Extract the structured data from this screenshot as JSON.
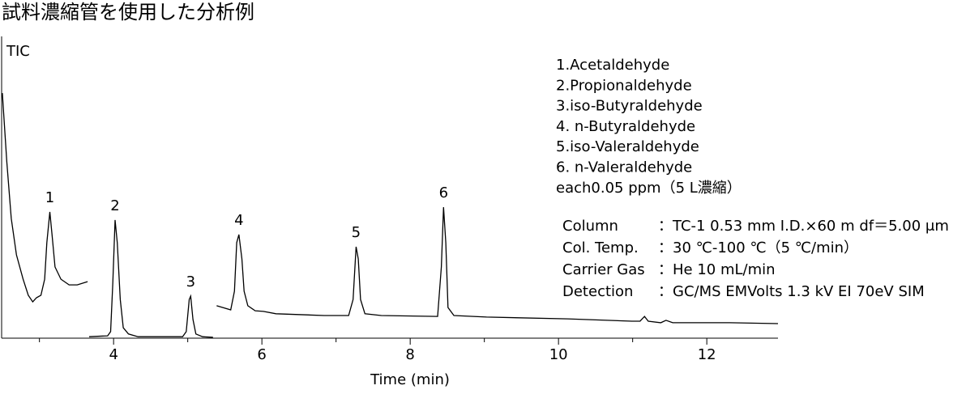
{
  "title": "試料濃縮管を使用した分析例",
  "chart_data": {
    "type": "line",
    "color": "#000000",
    "y_label": "TIC",
    "x_label": "Time (min)",
    "xlim": [
      2.49,
      12.96
    ],
    "ylim": [
      0,
      100
    ],
    "xticks": [
      4,
      6,
      8,
      10,
      12
    ],
    "xminorticks": [
      3,
      5,
      7,
      9,
      11
    ],
    "x": [
      2.5,
      2.56,
      2.62,
      2.69,
      2.78,
      2.85,
      2.91,
      2.96,
      3.02,
      3.07,
      3.1,
      3.14,
      3.17,
      3.21,
      3.29,
      3.4,
      3.51,
      3.65,
      null,
      3.67,
      3.92,
      3.96,
      3.99,
      4.02,
      4.05,
      4.09,
      4.13,
      4.2,
      4.33,
      4.93,
      4.98,
      5.02,
      5.04,
      5.07,
      5.11,
      5.2,
      5.34,
      null,
      5.39,
      5.58,
      5.63,
      5.66,
      5.69,
      5.73,
      5.76,
      5.81,
      5.91,
      6.02,
      6.19,
      6.84,
      7.17,
      7.23,
      7.27,
      7.3,
      7.33,
      7.39,
      7.61,
      8.37,
      8.42,
      8.45,
      8.48,
      8.51,
      8.59,
      9.03,
      10.12,
      10.99,
      11.1,
      11.16,
      11.21,
      11.38,
      11.45,
      11.54,
      12.31,
      12.96
    ],
    "values": [
      82.3,
      59.2,
      40.2,
      28.0,
      19.8,
      14.4,
      12.2,
      13.6,
      14.4,
      19.8,
      32.1,
      42.4,
      34.8,
      23.9,
      19.8,
      17.9,
      17.9,
      19.0,
      null,
      0.5,
      0.8,
      2.2,
      18.5,
      39.7,
      32.1,
      13.0,
      3.5,
      1.4,
      0.5,
      0.5,
      2.2,
      13.0,
      14.1,
      6.3,
      1.4,
      0.5,
      0.3,
      null,
      10.9,
      9.5,
      15.8,
      32.1,
      34.8,
      26.6,
      15.8,
      10.9,
      9.2,
      9.0,
      8.2,
      7.6,
      7.6,
      13.0,
      30.7,
      26.6,
      13.0,
      8.2,
      7.6,
      7.3,
      23.9,
      44.0,
      32.1,
      10.3,
      7.6,
      7.1,
      6.5,
      5.7,
      5.7,
      7.3,
      5.7,
      5.2,
      6.0,
      5.2,
      5.2,
      4.9
    ],
    "peak_labels": [
      {
        "text": "1",
        "x": 3.14
      },
      {
        "text": "2",
        "x": 4.02
      },
      {
        "text": "3",
        "x": 5.04
      },
      {
        "text": "4",
        "x": 5.69
      },
      {
        "text": "5",
        "x": 7.27
      },
      {
        "text": "6",
        "x": 8.45
      }
    ],
    "compounds": [
      "1.Acetaldehyde",
      "2.Propionaldehyde",
      "3.iso-Butyraldehyde",
      "4. n-Butyraldehyde",
      "5.iso-Valeraldehyde",
      "6. n-Valeraldehyde",
      "each0.05 ppm（5 L濃縮）"
    ],
    "conditions": [
      [
        "Column",
        "：TC-1 0.53 mm I.D.×60 m df＝5.00 μm"
      ],
      [
        "Col. Temp.",
        "：30 ℃-100 ℃（5 ℃/min）"
      ],
      [
        "Carrier Gas",
        "：He 10 mL/min"
      ],
      [
        "Detection",
        "：GC/MS EMVolts 1.3 kV EI 70eV SIM"
      ]
    ]
  }
}
